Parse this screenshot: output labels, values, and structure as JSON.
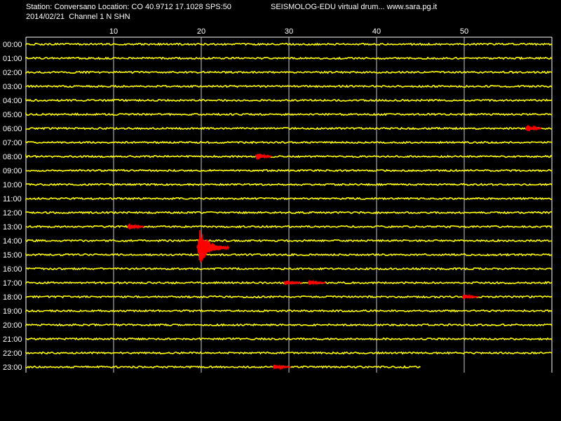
{
  "header": {
    "station_line": "Station: Conversano Location: CO 40.9712 17.1028 SPS:50",
    "branding": "SEISMOLOG-EDU virtual drum... www.sara.pg.it",
    "date_channel": "2014/02/21  Channel 1 N SHN"
  },
  "colors": {
    "background": "#000000",
    "trace": "#ffff00",
    "event": "#ff0000",
    "grid": "#ffffff",
    "text": "#ffffff"
  },
  "chart_data": {
    "type": "line",
    "title": "",
    "x_ticks": [
      10,
      20,
      30,
      40,
      50
    ],
    "xlim": [
      0,
      60
    ],
    "xlabel": "",
    "ylabel": "",
    "rows": [
      "00:00",
      "01:00",
      "02:00",
      "03:00",
      "04:00",
      "05:00",
      "06:00",
      "07:00",
      "08:00",
      "09:00",
      "10:00",
      "11:00",
      "12:00",
      "13:00",
      "14:00",
      "15:00",
      "16:00",
      "17:00",
      "18:00",
      "19:00",
      "20:00",
      "21:00",
      "22:00",
      "23:00"
    ],
    "last_row_end_minute": 45,
    "events": [
      {
        "row": "06:00",
        "start_min": 57.0,
        "end_min": 58.8,
        "amp": 6
      },
      {
        "row": "08:00",
        "start_min": 26.2,
        "end_min": 28.0,
        "amp": 6
      },
      {
        "row": "13:00",
        "start_min": 11.6,
        "end_min": 13.5,
        "amp": 5
      },
      {
        "row": "14:00",
        "start_min": 19.5,
        "end_min": 23.2,
        "amp": 26,
        "major": true
      },
      {
        "row": "17:00",
        "start_min": 29.4,
        "end_min": 31.5,
        "amp": 4
      },
      {
        "row": "17:00",
        "start_min": 32.2,
        "end_min": 34.2,
        "amp": 4
      },
      {
        "row": "18:00",
        "start_min": 49.8,
        "end_min": 51.6,
        "amp": 4
      },
      {
        "row": "23:00",
        "start_min": 28.2,
        "end_min": 30.2,
        "amp": 4
      }
    ],
    "grid": true
  }
}
